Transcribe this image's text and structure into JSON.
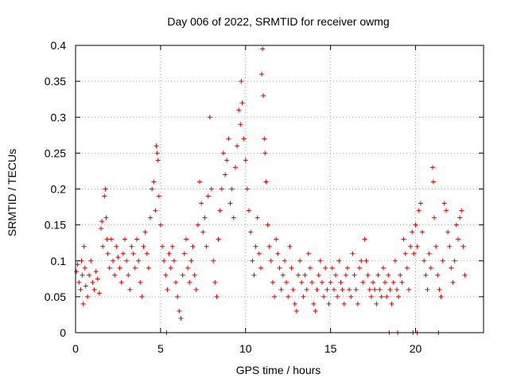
{
  "chart_data": {
    "type": "scatter",
    "title": "Day 006 of 2022, SRMTID for receiver owmg",
    "xlabel": "GPS time / hours",
    "ylabel": "SRMTID / TECUs",
    "xlim": [
      0,
      24
    ],
    "ylim": [
      0,
      0.4
    ],
    "xticks": [
      0,
      5,
      10,
      15,
      20
    ],
    "yticks": [
      0,
      0.05,
      0.1,
      0.15,
      0.2,
      0.25,
      0.3,
      0.35,
      0.4
    ],
    "xtick_labels": [
      "0",
      "5",
      "10",
      "15",
      "20"
    ],
    "ytick_labels": [
      "0",
      "0.05",
      "0.1",
      "0.15",
      "0.2",
      "0.25",
      "0.3",
      "0.35",
      "0.4"
    ],
    "grid": true,
    "marker": "+",
    "color": "#e00000",
    "series": [
      {
        "name": "SRMTID",
        "points": [
          [
            0.05,
            0.085
          ],
          [
            0.12,
            0.095
          ],
          [
            0.2,
            0.07
          ],
          [
            0.3,
            0.06
          ],
          [
            0.35,
            0.1
          ],
          [
            0.4,
            0.08
          ],
          [
            0.45,
            0.04
          ],
          [
            0.5,
            0.12
          ],
          [
            0.55,
            0.09
          ],
          [
            0.6,
            0.065
          ],
          [
            0.7,
            0.05
          ],
          [
            0.8,
            0.08
          ],
          [
            0.9,
            0.1
          ],
          [
            1.0,
            0.07
          ],
          [
            1.1,
            0.06
          ],
          [
            1.2,
            0.085
          ],
          [
            1.3,
            0.075
          ],
          [
            1.4,
            0.055
          ],
          [
            1.5,
            0.145
          ],
          [
            1.55,
            0.155
          ],
          [
            1.6,
            0.12
          ],
          [
            1.7,
            0.19
          ],
          [
            1.75,
            0.2
          ],
          [
            1.8,
            0.16
          ],
          [
            1.85,
            0.13
          ],
          [
            1.9,
            0.11
          ],
          [
            2.0,
            0.09
          ],
          [
            2.1,
            0.13
          ],
          [
            2.2,
            0.1
          ],
          [
            2.3,
            0.08
          ],
          [
            2.4,
            0.12
          ],
          [
            2.5,
            0.105
          ],
          [
            2.6,
            0.09
          ],
          [
            2.7,
            0.07
          ],
          [
            2.8,
            0.11
          ],
          [
            2.9,
            0.13
          ],
          [
            3.0,
            0.1
          ],
          [
            3.1,
            0.08
          ],
          [
            3.2,
            0.06
          ],
          [
            3.3,
            0.12
          ],
          [
            3.4,
            0.11
          ],
          [
            3.5,
            0.09
          ],
          [
            3.6,
            0.13
          ],
          [
            3.7,
            0.1
          ],
          [
            3.8,
            0.07
          ],
          [
            3.9,
            0.05
          ],
          [
            4.0,
            0.12
          ],
          [
            4.1,
            0.14
          ],
          [
            4.2,
            0.11
          ],
          [
            4.3,
            0.09
          ],
          [
            4.4,
            0.16
          ],
          [
            4.5,
            0.2
          ],
          [
            4.6,
            0.21
          ],
          [
            4.7,
            0.17
          ],
          [
            4.75,
            0.26
          ],
          [
            4.8,
            0.25
          ],
          [
            4.85,
            0.24
          ],
          [
            4.9,
            0.19
          ],
          [
            5.0,
            0.15
          ],
          [
            5.1,
            0.12
          ],
          [
            5.2,
            0.1
          ],
          [
            5.3,
            0.08
          ],
          [
            5.4,
            0.06
          ],
          [
            5.5,
            0.11
          ],
          [
            5.6,
            0.09
          ],
          [
            5.7,
            0.12
          ],
          [
            5.8,
            0.1
          ],
          [
            5.9,
            0.07
          ],
          [
            6.0,
            0.05
          ],
          [
            6.1,
            0.03
          ],
          [
            6.2,
            0.02
          ],
          [
            6.3,
            0.08
          ],
          [
            6.4,
            0.11
          ],
          [
            6.5,
            0.13
          ],
          [
            6.6,
            0.09
          ],
          [
            6.7,
            0.07
          ],
          [
            6.8,
            0.1
          ],
          [
            6.9,
            0.12
          ],
          [
            7.0,
            0.08
          ],
          [
            7.1,
            0.06
          ],
          [
            7.2,
            0.15
          ],
          [
            7.3,
            0.21
          ],
          [
            7.4,
            0.18
          ],
          [
            7.5,
            0.14
          ],
          [
            7.6,
            0.16
          ],
          [
            7.7,
            0.12
          ],
          [
            7.8,
            0.19
          ],
          [
            7.9,
            0.3
          ],
          [
            8.0,
            0.2
          ],
          [
            8.1,
            0.1
          ],
          [
            8.2,
            0.07
          ],
          [
            8.3,
            0.05
          ],
          [
            8.4,
            0.13
          ],
          [
            8.5,
            0.17
          ],
          [
            8.6,
            0.2
          ],
          [
            8.7,
            0.25
          ],
          [
            8.8,
            0.22
          ],
          [
            8.9,
            0.24
          ],
          [
            9.0,
            0.27
          ],
          [
            9.1,
            0.18
          ],
          [
            9.2,
            0.2
          ],
          [
            9.3,
            0.16
          ],
          [
            9.4,
            0.23
          ],
          [
            9.5,
            0.26
          ],
          [
            9.6,
            0.31
          ],
          [
            9.7,
            0.29
          ],
          [
            9.75,
            0.35
          ],
          [
            9.8,
            0.32
          ],
          [
            9.9,
            0.27
          ],
          [
            10.0,
            0.24
          ],
          [
            10.1,
            0.2
          ],
          [
            10.2,
            0.17
          ],
          [
            10.3,
            0.14
          ],
          [
            10.4,
            0.1
          ],
          [
            10.5,
            0.08
          ],
          [
            10.6,
            0.12
          ],
          [
            10.7,
            0.16
          ],
          [
            10.8,
            0.11
          ],
          [
            10.9,
            0.09
          ],
          [
            10.95,
            0.36
          ],
          [
            11.0,
            0.395
          ],
          [
            11.05,
            0.33
          ],
          [
            11.1,
            0.27
          ],
          [
            11.15,
            0.25
          ],
          [
            11.2,
            0.21
          ],
          [
            11.3,
            0.15
          ],
          [
            11.4,
            0.12
          ],
          [
            11.5,
            0.1
          ],
          [
            11.6,
            0.07
          ],
          [
            11.7,
            0.05
          ],
          [
            11.8,
            0.13
          ],
          [
            11.9,
            0.11
          ],
          [
            12.0,
            0.09
          ],
          [
            12.1,
            0.06
          ],
          [
            12.2,
            0.08
          ],
          [
            12.3,
            0.1
          ],
          [
            12.4,
            0.07
          ],
          [
            12.5,
            0.05
          ],
          [
            12.6,
            0.12
          ],
          [
            12.7,
            0.09
          ],
          [
            12.8,
            0.06
          ],
          [
            12.9,
            0.04
          ],
          [
            13.0,
            0.03
          ],
          [
            13.1,
            0.08
          ],
          [
            13.2,
            0.1
          ],
          [
            13.3,
            0.07
          ],
          [
            13.4,
            0.05
          ],
          [
            13.5,
            0.08
          ],
          [
            13.6,
            0.06
          ],
          [
            13.7,
            0.11
          ],
          [
            13.8,
            0.09
          ],
          [
            13.9,
            0.07
          ],
          [
            14.0,
            0.04
          ],
          [
            14.1,
            0.03
          ],
          [
            14.2,
            0.06
          ],
          [
            14.3,
            0.08
          ],
          [
            14.4,
            0.1
          ],
          [
            14.5,
            0.07
          ],
          [
            14.6,
            0.05
          ],
          [
            14.7,
            0.09
          ],
          [
            14.8,
            0.06
          ],
          [
            14.9,
            0.04
          ],
          [
            15.0,
            0.07
          ],
          [
            15.1,
            0.09
          ],
          [
            15.2,
            0.06
          ],
          [
            15.3,
            0.08
          ],
          [
            15.4,
            0.05
          ],
          [
            15.5,
            0.1
          ],
          [
            15.6,
            0.07
          ],
          [
            15.7,
            0.06
          ],
          [
            15.8,
            0.04
          ],
          [
            15.9,
            0.08
          ],
          [
            16.0,
            0.09
          ],
          [
            16.1,
            0.06
          ],
          [
            16.2,
            0.05
          ],
          [
            16.3,
            0.11
          ],
          [
            16.4,
            0.08
          ],
          [
            16.5,
            0.06
          ],
          [
            16.6,
            0.04
          ],
          [
            16.7,
            0.09
          ],
          [
            16.8,
            0.1
          ],
          [
            16.9,
            0.07
          ],
          [
            17.0,
            0.13
          ],
          [
            17.1,
            0.1
          ],
          [
            17.2,
            0.08
          ],
          [
            17.3,
            0.06
          ],
          [
            17.4,
            0.05
          ],
          [
            17.5,
            0.07
          ],
          [
            17.6,
            0.06
          ],
          [
            17.7,
            0.04
          ],
          [
            17.8,
            0.08
          ],
          [
            17.9,
            0.06
          ],
          [
            18.0,
            0.05
          ],
          [
            18.1,
            0.09
          ],
          [
            18.2,
            0.07
          ],
          [
            18.3,
            0.05
          ],
          [
            18.4,
            0.08
          ],
          [
            18.5,
            0.06
          ],
          [
            18.6,
            0.04
          ],
          [
            18.7,
            0.07
          ],
          [
            18.8,
            0.1
          ],
          [
            18.9,
            0.06
          ],
          [
            19.0,
            0.05
          ],
          [
            19.1,
            0.08
          ],
          [
            19.2,
            0.07
          ],
          [
            19.3,
            0.13
          ],
          [
            19.4,
            0.11
          ],
          [
            19.5,
            0.09
          ],
          [
            19.6,
            0.06
          ],
          [
            19.7,
            0.12
          ],
          [
            19.8,
            0.14
          ],
          [
            19.9,
            0.11
          ],
          [
            20.0,
            0.15
          ],
          [
            20.1,
            0.12
          ],
          [
            20.2,
            0.17
          ],
          [
            20.3,
            0.18
          ],
          [
            20.4,
            0.14
          ],
          [
            20.5,
            0.1
          ],
          [
            20.6,
            0.08
          ],
          [
            20.7,
            0.06
          ],
          [
            20.8,
            0.11
          ],
          [
            20.9,
            0.09
          ],
          [
            21.0,
            0.23
          ],
          [
            21.05,
            0.21
          ],
          [
            21.1,
            0.16
          ],
          [
            21.2,
            0.12
          ],
          [
            21.3,
            0.08
          ],
          [
            21.4,
            0.06
          ],
          [
            21.5,
            0.05
          ],
          [
            21.6,
            0.1
          ],
          [
            21.7,
            0.18
          ],
          [
            21.8,
            0.17
          ],
          [
            21.9,
            0.14
          ],
          [
            22.0,
            0.12
          ],
          [
            22.1,
            0.09
          ],
          [
            22.2,
            0.07
          ],
          [
            22.3,
            0.1
          ],
          [
            22.4,
            0.15
          ],
          [
            22.5,
            0.13
          ],
          [
            22.6,
            0.16
          ],
          [
            22.7,
            0.17
          ],
          [
            22.8,
            0.12
          ],
          [
            22.9,
            0.08
          ],
          [
            5.35,
            0.0
          ],
          [
            18.45,
            0.0
          ],
          [
            18.95,
            0.0
          ],
          [
            19.85,
            0.0
          ],
          [
            20.1,
            0.0
          ],
          [
            21.35,
            0.0
          ]
        ]
      }
    ]
  }
}
